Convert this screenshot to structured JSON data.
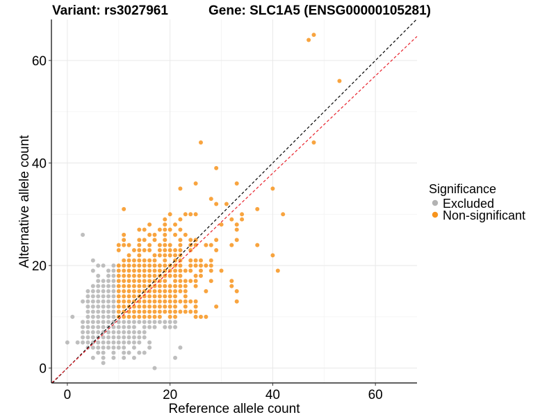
{
  "chart_data": {
    "type": "scatter",
    "title_left": "Variant: rs3027961",
    "title_right": "Gene: SLC1A5 (ENSG00000105281)",
    "xlabel": "Reference allele count",
    "ylabel": "Alternative allele count",
    "xlim": [
      -3.1,
      68.1
    ],
    "ylim": [
      -2.9,
      68
    ],
    "x_ticks": [
      0,
      20,
      40,
      60
    ],
    "y_ticks": [
      0,
      20,
      40,
      60
    ],
    "x_tick_labels": [
      "0",
      "20",
      "40",
      "60"
    ],
    "y_tick_labels": [
      "0",
      "20",
      "40",
      "60"
    ],
    "minor_grid": [
      10,
      30,
      50
    ],
    "grid": true,
    "legend": {
      "title": "Significance",
      "placement": "right",
      "entries": [
        {
          "label": "Excluded",
          "color": "#B3B3B3"
        },
        {
          "label": "Non-significant",
          "color": "#F7941D"
        }
      ]
    },
    "reference_lines": [
      {
        "name": "identity",
        "slope": 1.0,
        "intercept": 0,
        "color": "#000000",
        "style": "dashed"
      },
      {
        "name": "fit",
        "slope": 0.95,
        "intercept": 0,
        "color": "#E8202A",
        "style": "dashed"
      }
    ],
    "series": [
      {
        "name": "Excluded",
        "color": "#B3B3B3",
        "rows": [
          {
            "y": 26,
            "x": [
              3
            ]
          },
          {
            "y": 21,
            "x": [
              5
            ]
          },
          {
            "y": 20,
            "x": [
              6,
              7,
              9
            ]
          },
          {
            "y": 19,
            "x": [
              5,
              8,
              9
            ]
          },
          {
            "y": 18,
            "x": [
              6,
              8,
              9
            ]
          },
          {
            "y": 17,
            "x": [
              6,
              7,
              8,
              9
            ]
          },
          {
            "y": 16,
            "x": [
              5,
              6,
              7,
              8,
              9
            ]
          },
          {
            "y": 15,
            "x": [
              4,
              5,
              6,
              7,
              8,
              9
            ]
          },
          {
            "y": 14,
            "x": [
              4,
              5,
              6,
              7,
              8,
              9
            ]
          },
          {
            "y": 13,
            "x": [
              3,
              4,
              5,
              6,
              7,
              8,
              9
            ]
          },
          {
            "y": 12,
            "x": [
              4,
              5,
              6,
              7,
              8,
              9
            ]
          },
          {
            "y": 11,
            "x": [
              4,
              5,
              6,
              7,
              8,
              9
            ]
          },
          {
            "y": 10,
            "x": [
              1,
              4,
              5,
              6,
              7,
              8,
              9
            ]
          },
          {
            "y": 9,
            "x": [
              3,
              4,
              5,
              6,
              7,
              8,
              9,
              10,
              11,
              12,
              13,
              14,
              15,
              16,
              17,
              18,
              19,
              20,
              21
            ]
          },
          {
            "y": 8,
            "x": [
              3,
              4,
              5,
              6,
              7,
              8,
              9,
              10,
              11,
              12,
              13,
              15,
              16,
              17,
              19,
              20,
              21
            ]
          },
          {
            "y": 7,
            "x": [
              3,
              4,
              5,
              6,
              7,
              8,
              9,
              10,
              11,
              12,
              13,
              14,
              15
            ]
          },
          {
            "y": 6,
            "x": [
              3,
              4,
              5,
              6,
              7,
              8,
              9,
              10,
              11,
              12,
              13,
              14,
              15
            ]
          },
          {
            "y": 5,
            "x": [
              0,
              2,
              3,
              4,
              5,
              6,
              7,
              8,
              9,
              10,
              11,
              12,
              13,
              14,
              16
            ]
          },
          {
            "y": 4,
            "x": [
              4,
              5,
              6,
              7,
              8,
              9,
              10,
              11,
              13,
              16,
              22
            ]
          },
          {
            "y": 3,
            "x": [
              6,
              7,
              9,
              11,
              12,
              14,
              15
            ]
          },
          {
            "y": 2,
            "x": [
              5,
              7,
              9,
              11,
              13,
              21
            ]
          },
          {
            "y": 1,
            "x": [
              7
            ]
          },
          {
            "y": 0,
            "x": [
              17
            ]
          }
        ]
      },
      {
        "name": "Non-significant",
        "color": "#F7941D",
        "rows": [
          {
            "y": 65,
            "x": [
              48
            ]
          },
          {
            "y": 64,
            "x": [
              47
            ]
          },
          {
            "y": 56,
            "x": [
              53
            ]
          },
          {
            "y": 44,
            "x": [
              26,
              48
            ]
          },
          {
            "y": 39,
            "x": [
              29
            ]
          },
          {
            "y": 36,
            "x": [
              25,
              33
            ]
          },
          {
            "y": 35,
            "x": [
              22,
              40
            ]
          },
          {
            "y": 33,
            "x": [
              28
            ]
          },
          {
            "y": 32,
            "x": [
              29,
              31
            ]
          },
          {
            "y": 31,
            "x": [
              11,
              37
            ]
          },
          {
            "y": 30,
            "x": [
              20,
              23,
              24,
              25,
              34,
              42
            ]
          },
          {
            "y": 29,
            "x": [
              19,
              22,
              32,
              34
            ]
          },
          {
            "y": 28,
            "x": [
              16,
              19,
              21,
              30,
              33
            ]
          },
          {
            "y": 27,
            "x": [
              14,
              15,
              18,
              19,
              20,
              22,
              33
            ]
          },
          {
            "y": 26,
            "x": [
              11,
              16,
              17,
              19,
              21,
              23
            ]
          },
          {
            "y": 25,
            "x": [
              11,
              14,
              15,
              17,
              19,
              22,
              24,
              25,
              29,
              33
            ]
          },
          {
            "y": 24,
            "x": [
              10,
              11,
              12,
              14,
              16,
              18,
              19,
              20,
              22,
              24,
              25,
              27,
              28,
              32,
              37
            ]
          },
          {
            "y": 23,
            "x": [
              10,
              13,
              14,
              15,
              16,
              18,
              19,
              20,
              21,
              22,
              24,
              29
            ]
          },
          {
            "y": 22,
            "x": [
              12,
              14,
              17,
              18,
              19,
              20,
              21,
              22,
              40
            ]
          },
          {
            "y": 21,
            "x": [
              11,
              12,
              13,
              14,
              15,
              16,
              17,
              19,
              21,
              22,
              24,
              25,
              26,
              28
            ]
          },
          {
            "y": 20,
            "x": [
              10,
              11,
              12,
              13,
              14,
              15,
              16,
              17,
              18,
              19,
              20,
              21,
              22,
              24,
              25,
              26,
              27,
              28
            ]
          },
          {
            "y": 19,
            "x": [
              10,
              11,
              12,
              13,
              14,
              15,
              16,
              17,
              18,
              19,
              20,
              21,
              22,
              23,
              24,
              26,
              28,
              30,
              41
            ]
          },
          {
            "y": 18,
            "x": [
              10,
              11,
              12,
              13,
              14,
              15,
              16,
              17,
              18,
              19,
              20,
              21,
              22,
              25,
              26
            ]
          },
          {
            "y": 17,
            "x": [
              10,
              11,
              12,
              13,
              14,
              15,
              16,
              17,
              18,
              19,
              21,
              22,
              23,
              24,
              25,
              28,
              32
            ]
          },
          {
            "y": 16,
            "x": [
              10,
              11,
              12,
              13,
              14,
              15,
              16,
              17,
              18,
              19,
              20,
              21,
              22,
              23,
              25,
              32
            ]
          },
          {
            "y": 15,
            "x": [
              10,
              11,
              12,
              13,
              14,
              15,
              16,
              17,
              18,
              19,
              20,
              21,
              22,
              23,
              27,
              33
            ]
          },
          {
            "y": 14,
            "x": [
              10,
              11,
              12,
              13,
              14,
              15,
              16,
              17,
              18,
              19,
              20,
              21,
              23
            ]
          },
          {
            "y": 13,
            "x": [
              10,
              11,
              12,
              13,
              14,
              15,
              16,
              17,
              18,
              19,
              20,
              21,
              22,
              23,
              24,
              25,
              33
            ]
          },
          {
            "y": 12,
            "x": [
              10,
              11,
              12,
              13,
              14,
              15,
              16,
              17,
              18,
              19,
              20,
              21,
              23,
              25,
              29
            ]
          },
          {
            "y": 11,
            "x": [
              10,
              11,
              12,
              13,
              14,
              15,
              16,
              17,
              18,
              19,
              20,
              21,
              22,
              23,
              24,
              25
            ]
          },
          {
            "y": 10,
            "x": [
              10,
              11,
              12,
              13,
              14,
              15,
              16,
              17,
              18,
              20,
              21,
              25,
              26,
              27
            ]
          }
        ]
      }
    ]
  }
}
